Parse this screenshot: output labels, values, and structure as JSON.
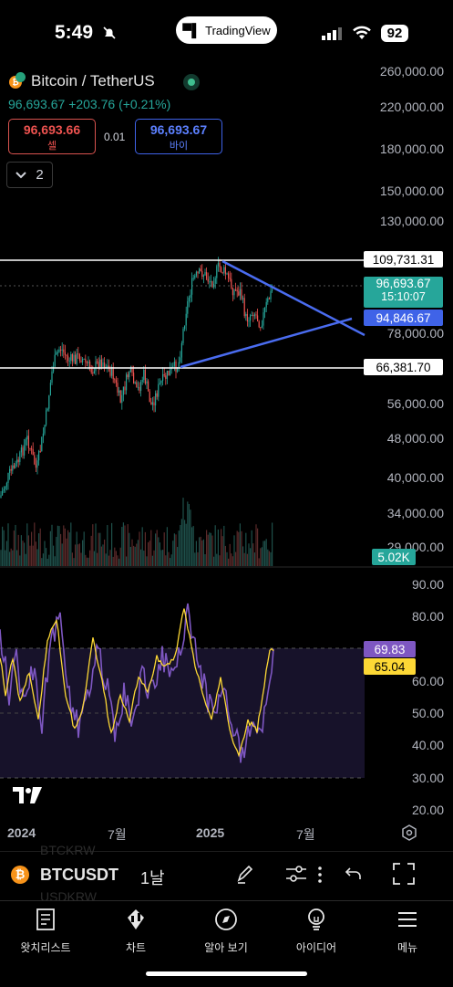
{
  "status": {
    "time": "5:49",
    "app_pill": "TradingView",
    "battery": "92"
  },
  "header": {
    "title": "Bitcoin / TetherUS",
    "price": "96,693.67",
    "change": "+203.76 (+0.21%)",
    "sell": {
      "value": "96,693.66",
      "label": "셀"
    },
    "buy": {
      "value": "96,693.67",
      "label": "바이"
    },
    "spread": "0.01",
    "collapse_count": "2"
  },
  "price_axis": [
    "260,000.00",
    "220,000.00",
    "180,000.00",
    "150,000.00",
    "130,000.00",
    "78,000.00",
    "56,000.00",
    "48,000.00",
    "40,000.00",
    "34,000.00",
    "29,000.00"
  ],
  "price_tags": {
    "upper_line": "109,731.31",
    "last_price": "96,693.67",
    "countdown": "15:10:07",
    "trendline": "94,846.67",
    "lower_line": "66,381.70",
    "volume": "5.02K"
  },
  "rsi_axis": [
    "90.00",
    "80.00",
    "60.00",
    "50.00",
    "40.00",
    "30.00",
    "20.00"
  ],
  "rsi_tags": {
    "rsi": "69.83",
    "ma": "65.04"
  },
  "time_axis": [
    "2024",
    "7월",
    "2025",
    "7월"
  ],
  "toolbar": {
    "symbol": "BTCUSDT",
    "interval": "1날",
    "ghost1": "BTCKRW",
    "ghost2": "USDKRW"
  },
  "nav": [
    {
      "label": "왓치리스트",
      "icon": "watchlist-icon"
    },
    {
      "label": "차트",
      "icon": "chart-icon"
    },
    {
      "label": "알아 보기",
      "icon": "compass-icon"
    },
    {
      "label": "아이디어",
      "icon": "lightbulb-icon"
    },
    {
      "label": "메뉴",
      "icon": "menu-icon"
    }
  ],
  "colors": {
    "up": "#26a69a",
    "down": "#ef5350",
    "trend": "#3f63e8",
    "rsi": "#7e57c2",
    "rsi_ma": "#fdd835"
  }
}
